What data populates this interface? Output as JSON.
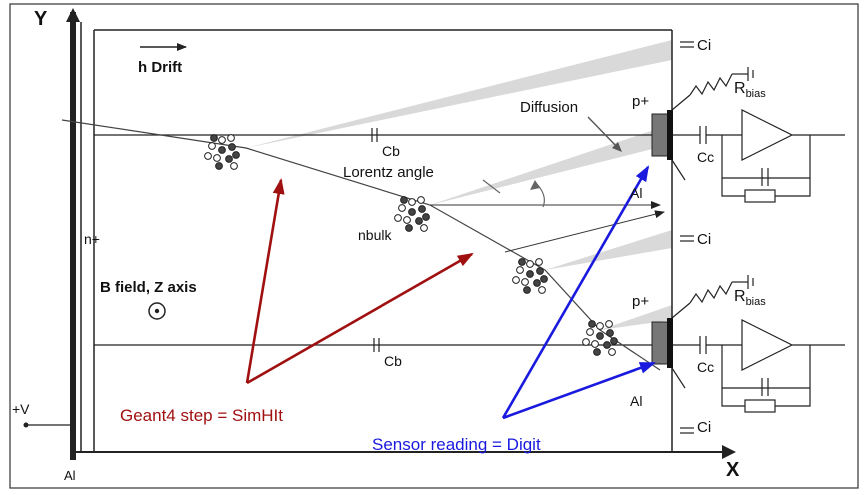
{
  "axes": {
    "y": "Y",
    "x": "X"
  },
  "labels": {
    "drift": "h Drift",
    "diffusion": "Diffusion",
    "p_plus_top": "p+",
    "p_plus_bottom": "p+",
    "ci_top": "Ci",
    "ci_mid": "Ci",
    "ci_bottom": "Ci",
    "rbias_top_main": "R",
    "rbias_top_sub": "bias",
    "rbias_bottom_main": "R",
    "rbias_bottom_sub": "bias",
    "cb_top": "Cb",
    "cb_bottom": "Cb",
    "cc_top": "Cc",
    "cc_bottom": "Cc",
    "lorentz": "Lorentz angle",
    "al_top": "Al",
    "al_bottom": "Al",
    "al_left": "Al",
    "n_plus": "n+",
    "nbulk": "nbulk",
    "bfield": "B field, Z axis",
    "plus_v": "+V"
  },
  "annotations": {
    "geant4": "Geant4 step = SimHIt",
    "sensor": "Sensor reading = Digit"
  },
  "colors": {
    "geant4_arrow": "#a01010",
    "sensor_arrow": "#1a1adf",
    "line": "#222222",
    "shade": "#d6d6d6"
  }
}
